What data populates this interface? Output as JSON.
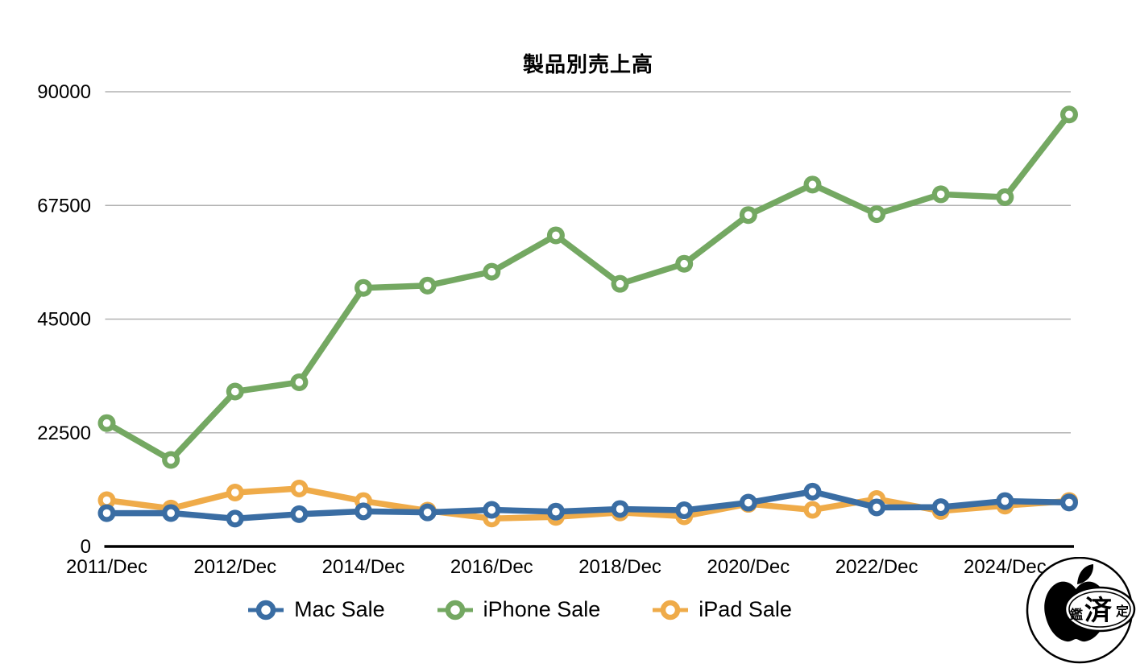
{
  "page": {
    "background": "#ffffff"
  },
  "chart_data": {
    "type": "line",
    "title": "製品別売上高",
    "xlabel": "",
    "ylabel": "",
    "ylim": [
      0,
      90000
    ],
    "y_ticks": [
      0,
      22500,
      45000,
      67500,
      90000
    ],
    "grid": "horizontal-only",
    "legend_position": "bottom",
    "num_points": 16,
    "x_tick_labels": [
      "2011/Dec",
      "2012/Dec",
      "2014/Dec",
      "2016/Dec",
      "2018/Dec",
      "2020/Dec",
      "2022/Dec",
      "2024/Dec"
    ],
    "x_tick_point_indices": [
      0,
      2,
      4,
      6,
      8,
      10,
      12,
      14
    ],
    "draw_order": [
      1,
      2,
      0
    ],
    "series": [
      {
        "name": "Mac Sale",
        "color": "#3a6da3",
        "values": [
          6598,
          6617,
          5519,
          6395,
          6944,
          6746,
          7244,
          6895,
          7416,
          7160,
          8675,
          10852,
          7735,
          7780,
          8987,
          8700
        ]
      },
      {
        "name": "iPhone Sale",
        "color": "#74a862",
        "values": [
          24417,
          17125,
          30660,
          32498,
          51182,
          51635,
          54378,
          61576,
          51982,
          55957,
          65597,
          71628,
          65775,
          69702,
          69138,
          85500
        ]
      },
      {
        "name": "iPad Sale",
        "color": "#efab49",
        "values": [
          9153,
          7510,
          10674,
          11468,
          8985,
          7084,
          5533,
          5862,
          6729,
          5977,
          8435,
          7248,
          9396,
          7023,
          8088,
          9000
        ]
      }
    ],
    "style": {
      "gridline_color": "#b2b2b2",
      "axis_color": "#000000",
      "line_width": 7.5,
      "marker_outer_radius": 11,
      "marker_hole_radius": 4.8,
      "tick_font_size": 24,
      "text_color": "#000000"
    }
  },
  "watermark": {
    "badge_char_left": "鑑",
    "badge_char_center": "済",
    "badge_char_right": "定"
  }
}
